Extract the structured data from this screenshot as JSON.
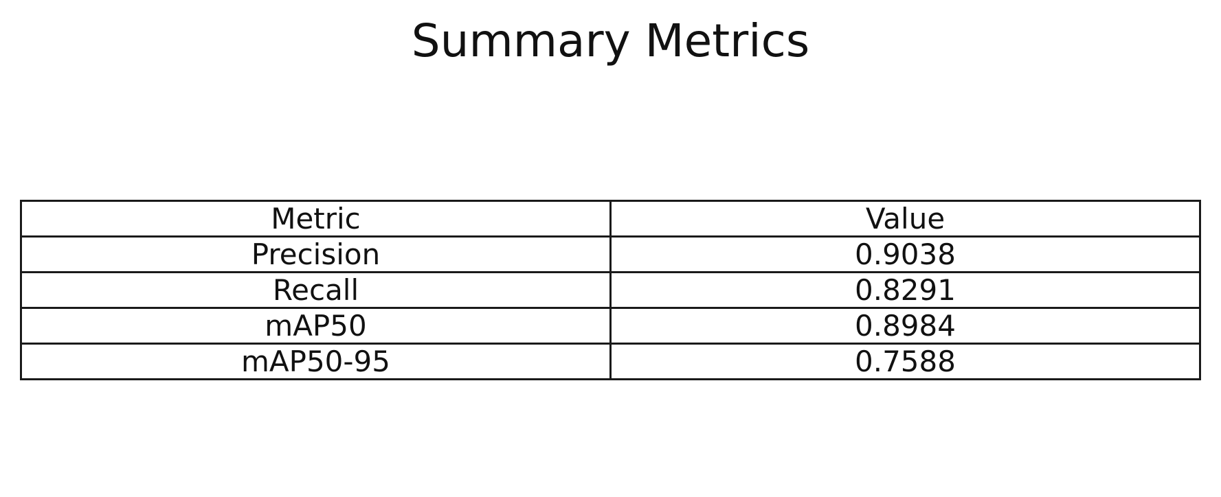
{
  "chart_data": {
    "type": "table",
    "title": "Summary Metrics",
    "columns": [
      "Metric",
      "Value"
    ],
    "rows": [
      [
        "Precision",
        "0.9038"
      ],
      [
        "Recall",
        "0.8291"
      ],
      [
        "mAP50",
        "0.8984"
      ],
      [
        "mAP50-95",
        "0.7588"
      ]
    ]
  }
}
